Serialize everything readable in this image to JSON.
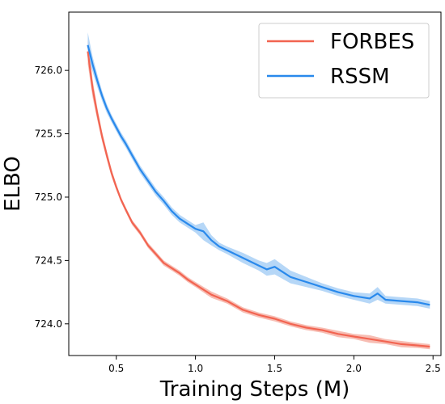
{
  "chart_data": {
    "type": "line",
    "xlabel": "Training Steps (M)",
    "ylabel": "ELBO",
    "xlim": [
      0.2,
      2.55
    ],
    "ylim": [
      723.75,
      726.46
    ],
    "xticks": [
      0.5,
      1.0,
      1.5,
      2.0,
      2.5
    ],
    "xtick_labels": [
      "0.5",
      "1.0",
      "1.5",
      "2.0",
      "2.5"
    ],
    "yticks": [
      724.0,
      724.5,
      725.0,
      725.5,
      726.0
    ],
    "ytick_labels": [
      "724.0",
      "724.5",
      "725.0",
      "725.5",
      "726.0"
    ],
    "grid": false,
    "legend_position": "top-right",
    "series": [
      {
        "name": "FORBES",
        "color": "#f26451",
        "band_color": "#f4a79a",
        "x": [
          0.32,
          0.35,
          0.38,
          0.41,
          0.44,
          0.47,
          0.5,
          0.53,
          0.56,
          0.6,
          0.65,
          0.7,
          0.75,
          0.8,
          0.85,
          0.9,
          0.95,
          1.0,
          1.1,
          1.2,
          1.3,
          1.4,
          1.5,
          1.6,
          1.7,
          1.8,
          1.9,
          2.0,
          2.1,
          2.2,
          2.3,
          2.4,
          2.48
        ],
        "y": [
          726.15,
          725.86,
          725.66,
          725.48,
          725.33,
          725.19,
          725.08,
          724.98,
          724.9,
          724.8,
          724.72,
          724.62,
          724.55,
          724.48,
          724.44,
          724.4,
          724.35,
          724.31,
          724.23,
          724.18,
          724.11,
          724.07,
          724.04,
          724.0,
          723.97,
          723.95,
          723.92,
          723.9,
          723.88,
          723.86,
          723.84,
          723.83,
          723.82
        ],
        "band": [
          0.1,
          0.07,
          0.05,
          0.04,
          0.035,
          0.03,
          0.025,
          0.02,
          0.02,
          0.02,
          0.02,
          0.02,
          0.02,
          0.02,
          0.02,
          0.02,
          0.02,
          0.02,
          0.025,
          0.02,
          0.02,
          0.02,
          0.02,
          0.02,
          0.02,
          0.02,
          0.025,
          0.02,
          0.03,
          0.02,
          0.025,
          0.02,
          0.02
        ]
      },
      {
        "name": "RSSM",
        "color": "#2989ec",
        "band_color": "#9ec9f4",
        "x": [
          0.32,
          0.35,
          0.38,
          0.41,
          0.44,
          0.47,
          0.5,
          0.53,
          0.56,
          0.6,
          0.65,
          0.7,
          0.75,
          0.8,
          0.85,
          0.9,
          0.95,
          1.0,
          1.05,
          1.1,
          1.15,
          1.2,
          1.3,
          1.4,
          1.45,
          1.5,
          1.6,
          1.7,
          1.8,
          1.9,
          2.0,
          2.1,
          2.15,
          2.2,
          2.3,
          2.4,
          2.48
        ],
        "y": [
          726.2,
          726.05,
          725.92,
          725.8,
          725.7,
          725.62,
          725.55,
          725.48,
          725.42,
          725.33,
          725.22,
          725.13,
          725.04,
          724.97,
          724.89,
          724.83,
          724.79,
          724.75,
          724.73,
          724.66,
          724.61,
          724.58,
          724.52,
          724.46,
          724.43,
          724.45,
          724.37,
          724.33,
          724.29,
          724.25,
          724.22,
          724.2,
          724.24,
          724.19,
          724.18,
          724.17,
          724.15
        ],
        "band": [
          0.1,
          0.06,
          0.05,
          0.04,
          0.035,
          0.03,
          0.03,
          0.03,
          0.03,
          0.03,
          0.03,
          0.03,
          0.03,
          0.03,
          0.03,
          0.03,
          0.03,
          0.03,
          0.07,
          0.04,
          0.03,
          0.03,
          0.04,
          0.04,
          0.05,
          0.06,
          0.05,
          0.04,
          0.03,
          0.03,
          0.03,
          0.04,
          0.05,
          0.03,
          0.03,
          0.03,
          0.03
        ]
      }
    ]
  }
}
